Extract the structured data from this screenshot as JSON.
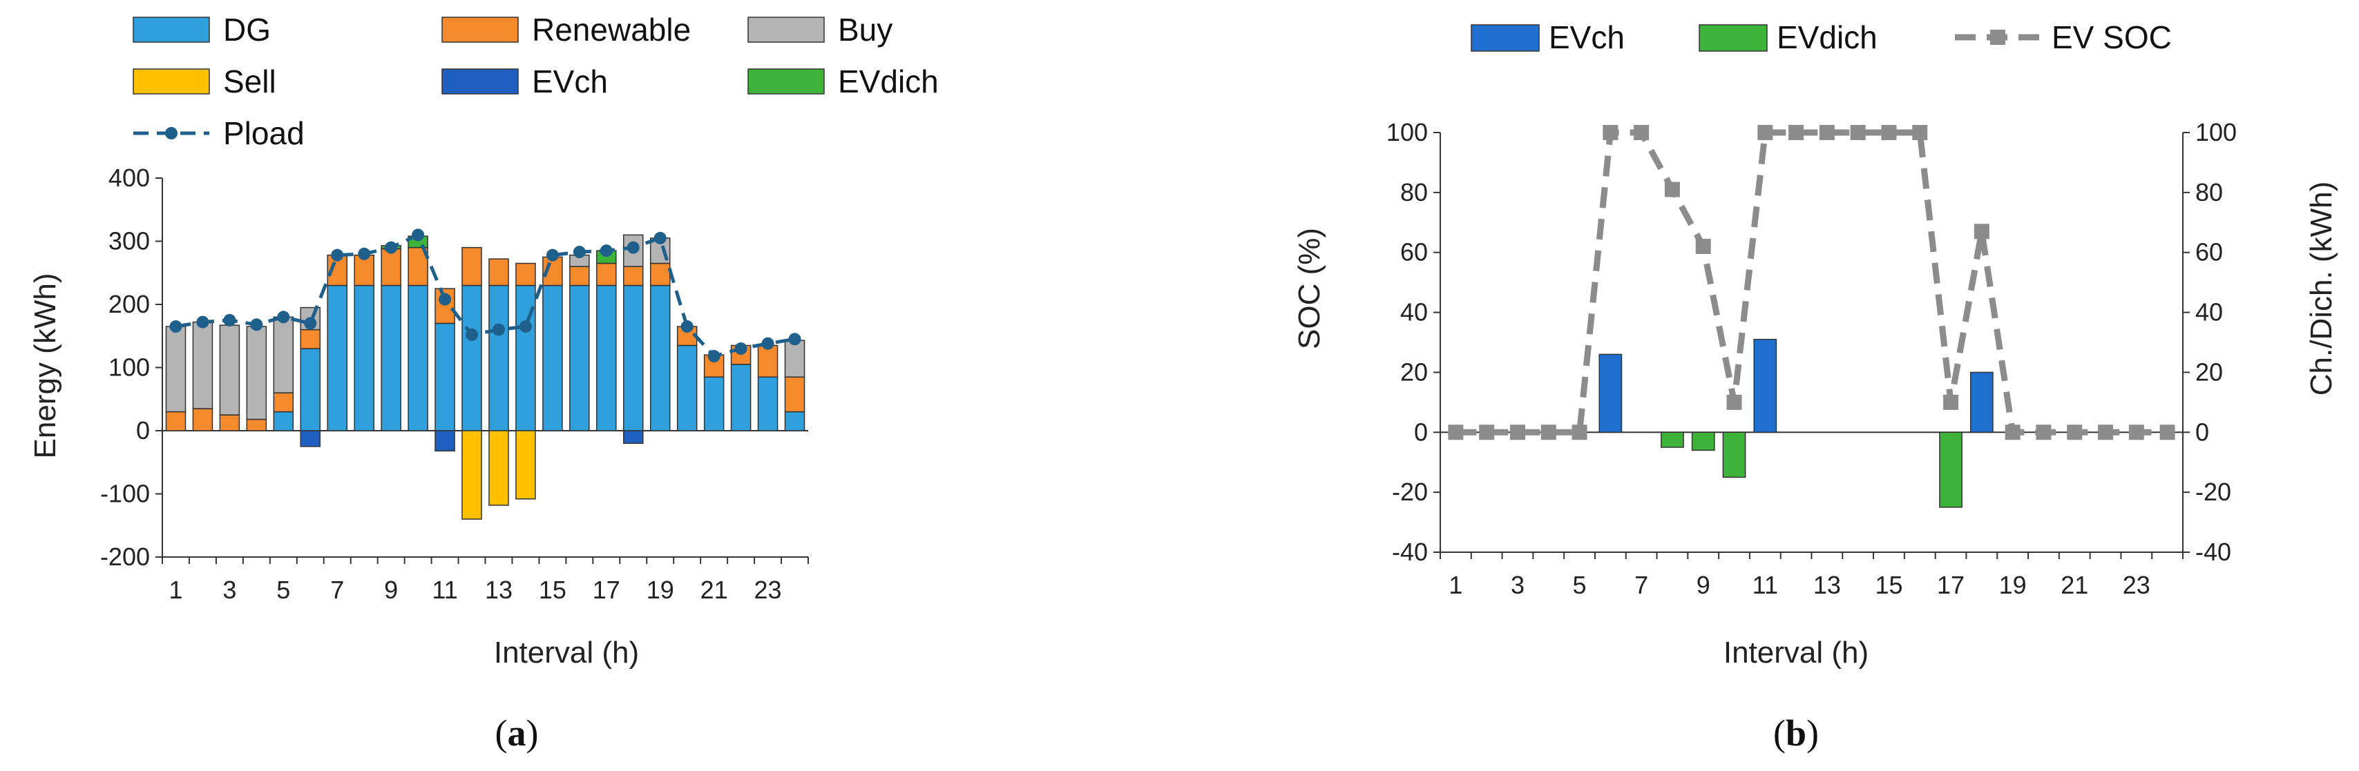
{
  "chart_data": [
    {
      "id": "a",
      "type": "bar",
      "caption_open": "(",
      "caption": "a",
      "caption_close": ")",
      "xlabel": "Interval (h)",
      "ylabel": "Energy (kWh)",
      "ylim": [
        -200,
        400
      ],
      "yticks": [
        400,
        300,
        200,
        100,
        0,
        -100,
        -200
      ],
      "categories": [
        1,
        2,
        3,
        4,
        5,
        6,
        7,
        8,
        9,
        10,
        11,
        12,
        13,
        14,
        15,
        16,
        17,
        18,
        19,
        20,
        21,
        22,
        23,
        24
      ],
      "xtick_labels": [
        "1",
        "3",
        "5",
        "7",
        "9",
        "11",
        "13",
        "15",
        "17",
        "19",
        "21",
        "23"
      ],
      "legend": [
        {
          "name": "DG",
          "color": "#2fa0dc",
          "kind": "bar"
        },
        {
          "name": "Renewable",
          "color": "#f58a2d",
          "kind": "bar"
        },
        {
          "name": "Buy",
          "color": "#b4b4b4",
          "kind": "bar"
        },
        {
          "name": "Sell",
          "color": "#ffc000",
          "kind": "bar"
        },
        {
          "name": "EVch",
          "color": "#1f5fbf",
          "kind": "bar"
        },
        {
          "name": "EVdich",
          "color": "#3db33a",
          "kind": "bar"
        },
        {
          "name": "Pload",
          "color": "#1f5f8b",
          "kind": "line"
        }
      ],
      "series": [
        {
          "name": "DG",
          "color": "#2fa0dc",
          "values": [
            0,
            0,
            0,
            0,
            30,
            130,
            230,
            230,
            230,
            230,
            170,
            230,
            230,
            230,
            230,
            230,
            230,
            230,
            230,
            135,
            85,
            105,
            85,
            30
          ]
        },
        {
          "name": "Renewable",
          "color": "#f58a2d",
          "values": [
            30,
            35,
            25,
            18,
            30,
            30,
            48,
            48,
            58,
            60,
            55,
            60,
            42,
            35,
            45,
            30,
            35,
            30,
            35,
            30,
            35,
            30,
            50,
            55
          ]
        },
        {
          "name": "Buy",
          "color": "#b4b4b4",
          "values": [
            135,
            137,
            142,
            147,
            120,
            35,
            0,
            0,
            0,
            0,
            0,
            0,
            0,
            0,
            0,
            18,
            0,
            50,
            40,
            0,
            0,
            0,
            0,
            58
          ]
        },
        {
          "name": "Sell",
          "color": "#ffc000",
          "values": [
            0,
            0,
            0,
            0,
            0,
            0,
            0,
            0,
            0,
            0,
            0,
            -140,
            -118,
            -108,
            0,
            0,
            0,
            0,
            0,
            0,
            0,
            0,
            0,
            0
          ]
        },
        {
          "name": "EVch",
          "color": "#1f5fbf",
          "values": [
            0,
            0,
            0,
            0,
            0,
            -25,
            0,
            0,
            0,
            0,
            -32,
            0,
            0,
            0,
            0,
            0,
            0,
            -20,
            0,
            0,
            0,
            0,
            0,
            0
          ]
        },
        {
          "name": "EVdich",
          "color": "#3db33a",
          "values": [
            0,
            0,
            0,
            0,
            0,
            0,
            0,
            0,
            5,
            18,
            0,
            0,
            0,
            0,
            0,
            0,
            20,
            0,
            0,
            0,
            0,
            0,
            0,
            0
          ]
        }
      ],
      "line": {
        "name": "Pload",
        "color": "#1f5f8b",
        "values": [
          165,
          172,
          175,
          168,
          180,
          170,
          278,
          280,
          290,
          310,
          208,
          152,
          160,
          165,
          278,
          283,
          285,
          290,
          305,
          165,
          118,
          130,
          138,
          145
        ]
      }
    },
    {
      "id": "b",
      "type": "bar",
      "caption_open": "(",
      "caption": "b",
      "caption_close": ")",
      "xlabel": "Interval (h)",
      "ylabel": "SOC (%)",
      "y2label": "Ch./Dich. (kWh)",
      "ylim": [
        -40,
        100
      ],
      "y2lim": [
        -40,
        100
      ],
      "yticks": [
        100,
        80,
        60,
        40,
        20,
        0,
        -20,
        -40
      ],
      "y2ticks": [
        100,
        80,
        60,
        40,
        20,
        0,
        -20,
        -40
      ],
      "categories": [
        1,
        2,
        3,
        4,
        5,
        6,
        7,
        8,
        9,
        10,
        11,
        12,
        13,
        14,
        15,
        16,
        17,
        18,
        19,
        20,
        21,
        22,
        23,
        24
      ],
      "xtick_labels": [
        "1",
        "3",
        "5",
        "7",
        "9",
        "11",
        "13",
        "15",
        "17",
        "19",
        "21",
        "23"
      ],
      "legend": [
        {
          "name": "EVch",
          "color": "#1f6fd0",
          "kind": "bar"
        },
        {
          "name": "EVdich",
          "color": "#3db33a",
          "kind": "bar"
        },
        {
          "name": "EV SOC",
          "color": "#8c8c8c",
          "kind": "line"
        }
      ],
      "series": [
        {
          "name": "EVch",
          "color": "#1f6fd0",
          "values": [
            0,
            0,
            0,
            0,
            0,
            26,
            0,
            0,
            0,
            0,
            31,
            0,
            0,
            0,
            0,
            0,
            0,
            20,
            0,
            0,
            0,
            0,
            0,
            0
          ]
        },
        {
          "name": "EVdich",
          "color": "#3db33a",
          "values": [
            0,
            0,
            0,
            0,
            0,
            0,
            0,
            -5,
            -6,
            -15,
            0,
            0,
            0,
            0,
            0,
            0,
            -25,
            0,
            0,
            0,
            0,
            0,
            0,
            0
          ]
        }
      ],
      "line": {
        "name": "EV SOC",
        "color": "#8c8c8c",
        "values": [
          0,
          0,
          0,
          0,
          0,
          100,
          100,
          81,
          62,
          10,
          100,
          100,
          100,
          100,
          100,
          100,
          10,
          67,
          0,
          0,
          0,
          0,
          0,
          0
        ]
      }
    }
  ]
}
